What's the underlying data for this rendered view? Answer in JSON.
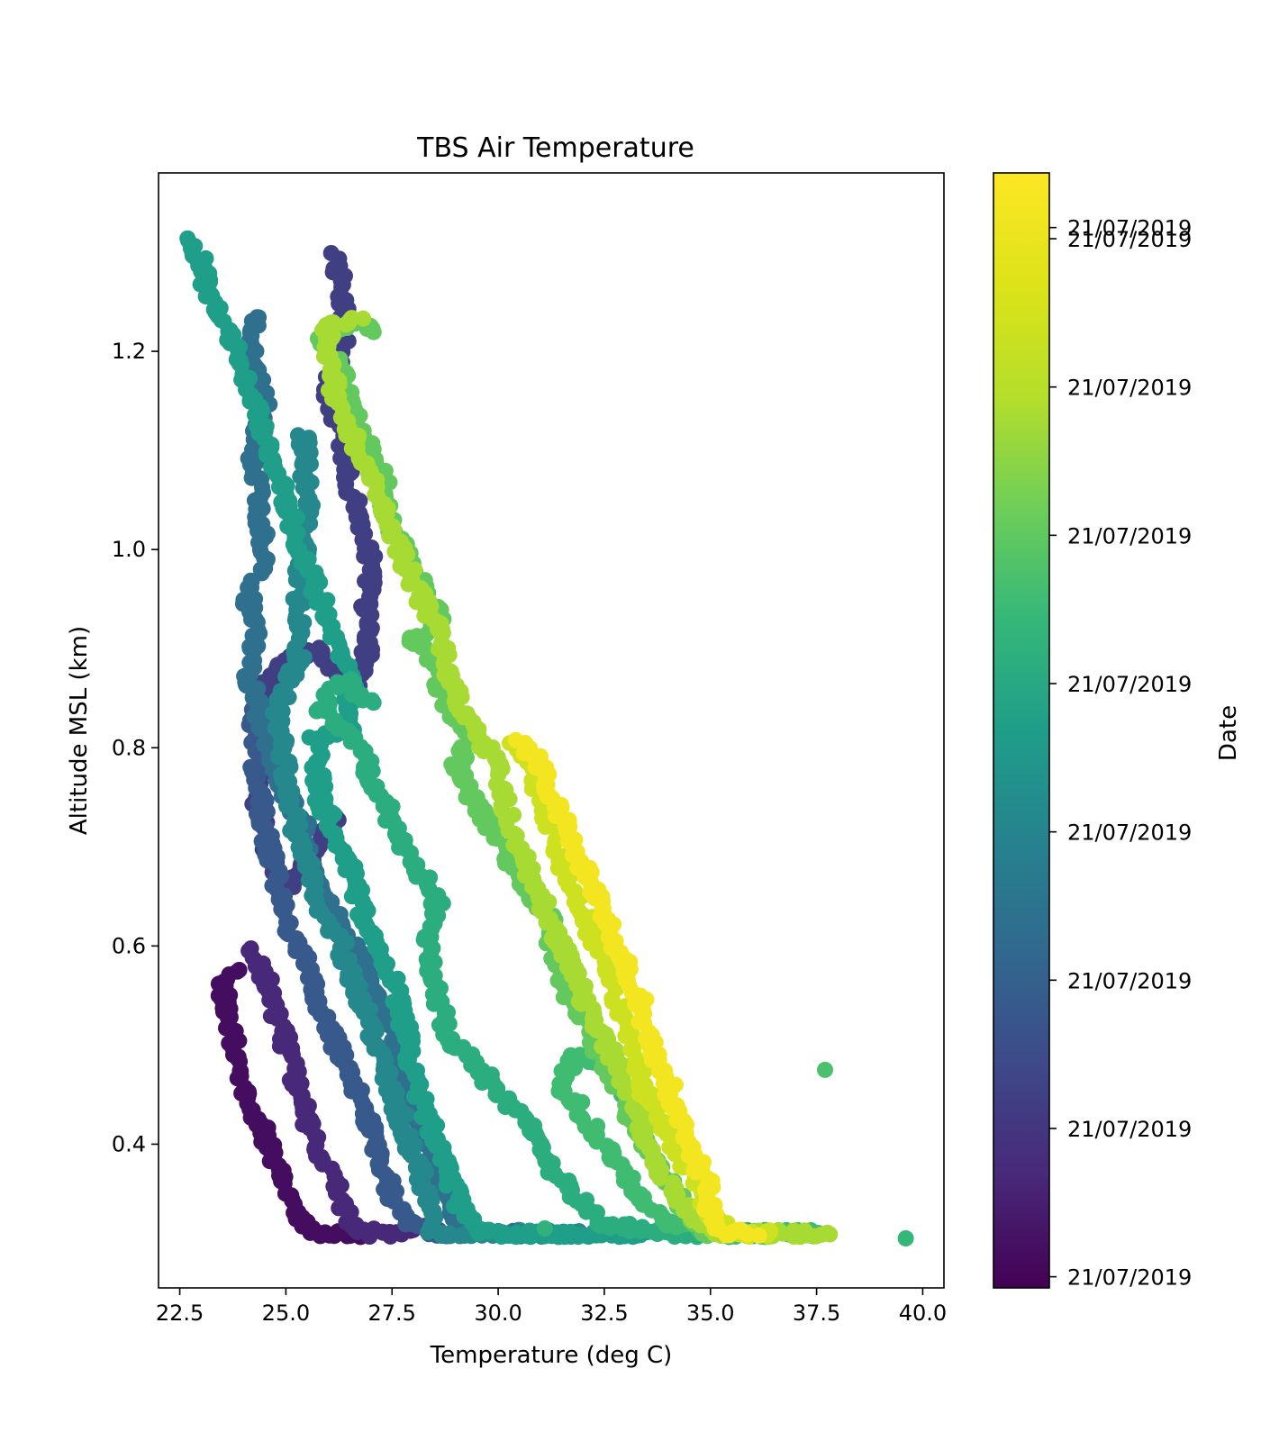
{
  "chart_data": {
    "type": "scatter",
    "title": "TBS Air Temperature",
    "xlabel": "Temperature (deg C)",
    "ylabel": "Altitude MSL (km)",
    "xlim": [
      22.0,
      40.5
    ],
    "ylim": [
      0.255,
      1.38
    ],
    "x_ticks": [
      "22.5",
      "25.0",
      "27.5",
      "30.0",
      "32.5",
      "35.0",
      "37.5",
      "40.0"
    ],
    "x_tick_values": [
      22.5,
      25.0,
      27.5,
      30.0,
      32.5,
      35.0,
      37.5,
      40.0
    ],
    "y_ticks": [
      "0.4",
      "0.6",
      "0.8",
      "1.0",
      "1.2"
    ],
    "y_tick_values": [
      0.4,
      0.6,
      0.8,
      1.0,
      1.2
    ],
    "grid": false,
    "colormap": "viridis",
    "colorbar": {
      "label": "Date",
      "tick_labels": [
        "21/07/2019",
        "21/07/2019",
        "21/07/2019",
        "21/07/2019",
        "21/07/2019",
        "21/07/2019",
        "21/07/2019",
        "21/07/2019",
        "21/07/2019"
      ],
      "tick_positions": [
        0.01,
        0.143,
        0.276,
        0.409,
        0.542,
        0.675,
        0.808,
        0.941,
        0.951
      ]
    },
    "traces": [
      {
        "c": 0.03,
        "points": [
          [
            26.8,
            0.31
          ],
          [
            25.6,
            0.31
          ],
          [
            25.2,
            0.33
          ],
          [
            24.8,
            0.38
          ],
          [
            24.4,
            0.42
          ],
          [
            23.9,
            0.47
          ],
          [
            23.7,
            0.52
          ],
          [
            23.5,
            0.56
          ],
          [
            23.9,
            0.58
          ]
        ]
      },
      {
        "c": 0.1,
        "points": [
          [
            28.0,
            0.31
          ],
          [
            27.0,
            0.31
          ],
          [
            26.5,
            0.32
          ],
          [
            26.3,
            0.35
          ],
          [
            25.8,
            0.39
          ],
          [
            25.4,
            0.44
          ],
          [
            25.0,
            0.5
          ],
          [
            24.6,
            0.56
          ],
          [
            24.2,
            0.6
          ]
        ]
      },
      {
        "c": 0.17,
        "points": [
          [
            26.2,
            0.73
          ],
          [
            25.8,
            0.7
          ],
          [
            25.0,
            0.66
          ],
          [
            24.5,
            0.7
          ],
          [
            24.3,
            0.76
          ],
          [
            24.6,
            0.8
          ],
          [
            24.3,
            0.85
          ],
          [
            24.8,
            0.88
          ],
          [
            25.6,
            0.9
          ],
          [
            26.5,
            0.86
          ],
          [
            26.9,
            0.88
          ],
          [
            26.9,
            0.94
          ],
          [
            27.0,
            1.0
          ],
          [
            26.6,
            1.05
          ],
          [
            26.4,
            1.1
          ],
          [
            26.0,
            1.16
          ],
          [
            26.4,
            1.22
          ],
          [
            26.2,
            1.3
          ]
        ]
      },
      {
        "c": 0.25,
        "points": [
          [
            29.5,
            0.31
          ],
          [
            28.5,
            0.31
          ],
          [
            27.8,
            0.32
          ],
          [
            27.4,
            0.36
          ],
          [
            27.0,
            0.42
          ],
          [
            26.5,
            0.47
          ],
          [
            26.0,
            0.52
          ],
          [
            25.5,
            0.58
          ],
          [
            25.0,
            0.62
          ],
          [
            24.8,
            0.66
          ],
          [
            24.5,
            0.72
          ],
          [
            24.3,
            0.78
          ],
          [
            24.2,
            0.84
          ]
        ]
      },
      {
        "c": 0.33,
        "points": [
          [
            30.5,
            0.31
          ],
          [
            29.5,
            0.31
          ],
          [
            29.0,
            0.33
          ],
          [
            28.6,
            0.37
          ],
          [
            28.2,
            0.42
          ],
          [
            27.8,
            0.46
          ],
          [
            27.4,
            0.52
          ],
          [
            27.0,
            0.56
          ],
          [
            26.6,
            0.6
          ],
          [
            26.0,
            0.64
          ],
          [
            25.6,
            0.68
          ],
          [
            25.4,
            0.72
          ],
          [
            24.9,
            0.76
          ],
          [
            24.5,
            0.82
          ],
          [
            24.1,
            0.87
          ],
          [
            24.3,
            0.92
          ],
          [
            24.1,
            0.95
          ],
          [
            24.5,
            0.99
          ],
          [
            24.4,
            1.04
          ],
          [
            24.2,
            1.09
          ],
          [
            24.5,
            1.15
          ],
          [
            24.2,
            1.2
          ],
          [
            24.4,
            1.24
          ]
        ]
      },
      {
        "c": 0.42,
        "points": [
          [
            32.0,
            0.31
          ],
          [
            30.5,
            0.31
          ],
          [
            29.5,
            0.31
          ],
          [
            28.5,
            0.31
          ],
          [
            28.4,
            0.34
          ],
          [
            28.0,
            0.39
          ],
          [
            27.6,
            0.44
          ],
          [
            27.3,
            0.48
          ],
          [
            27.0,
            0.52
          ],
          [
            26.6,
            0.56
          ],
          [
            26.3,
            0.6
          ],
          [
            25.8,
            0.64
          ],
          [
            25.6,
            0.68
          ],
          [
            25.2,
            0.72
          ],
          [
            25.0,
            0.78
          ],
          [
            24.8,
            0.84
          ],
          [
            25.3,
            0.89
          ],
          [
            25.3,
            0.95
          ],
          [
            25.4,
            1.0
          ],
          [
            25.5,
            1.05
          ],
          [
            25.4,
            1.12
          ]
        ]
      },
      {
        "c": 0.5,
        "points": [
          [
            33.5,
            0.31
          ],
          [
            32.0,
            0.31
          ],
          [
            31.0,
            0.31
          ],
          [
            29.5,
            0.31
          ],
          [
            29.2,
            0.33
          ],
          [
            28.8,
            0.37
          ],
          [
            28.4,
            0.42
          ],
          [
            28.0,
            0.47
          ],
          [
            27.8,
            0.52
          ],
          [
            27.5,
            0.57
          ],
          [
            27.0,
            0.61
          ],
          [
            26.7,
            0.65
          ],
          [
            26.3,
            0.7
          ],
          [
            25.8,
            0.75
          ],
          [
            25.7,
            0.81
          ],
          [
            26.5,
            0.82
          ],
          [
            26.5,
            0.87
          ],
          [
            26.1,
            0.92
          ],
          [
            25.6,
            0.97
          ],
          [
            25.2,
            1.02
          ],
          [
            24.8,
            1.08
          ],
          [
            24.3,
            1.14
          ],
          [
            23.8,
            1.2
          ],
          [
            23.2,
            1.26
          ],
          [
            22.8,
            1.32
          ]
        ]
      },
      {
        "c": 0.56,
        "points": [
          [
            36.5,
            0.31
          ],
          [
            35.0,
            0.31
          ],
          [
            34.0,
            0.31
          ],
          [
            32.5,
            0.32
          ],
          [
            31.8,
            0.35
          ],
          [
            31.2,
            0.38
          ],
          [
            30.8,
            0.42
          ],
          [
            30.0,
            0.45
          ],
          [
            29.5,
            0.48
          ],
          [
            28.8,
            0.51
          ],
          [
            28.6,
            0.55
          ],
          [
            28.3,
            0.6
          ],
          [
            28.6,
            0.65
          ],
          [
            28.0,
            0.68
          ],
          [
            27.6,
            0.71
          ],
          [
            27.4,
            0.74
          ],
          [
            27.0,
            0.77
          ],
          [
            26.6,
            0.81
          ],
          [
            25.8,
            0.84
          ],
          [
            26.4,
            0.87
          ],
          [
            27.0,
            0.84
          ]
        ]
      },
      {
        "c": 0.62,
        "points": [
          [
            37.5,
            0.31
          ],
          [
            35.5,
            0.31
          ],
          [
            34.0,
            0.32
          ],
          [
            33.5,
            0.34
          ],
          [
            33.0,
            0.37
          ],
          [
            32.5,
            0.4
          ],
          [
            32.0,
            0.43
          ],
          [
            31.5,
            0.46
          ],
          [
            31.8,
            0.49
          ],
          [
            32.5,
            0.48
          ],
          [
            33.4,
            0.43
          ]
        ]
      },
      {
        "c": 0.68,
        "points": [
          [
            36.0,
            0.31
          ],
          [
            35.0,
            0.31
          ],
          [
            34.5,
            0.33
          ],
          [
            34.0,
            0.36
          ],
          [
            33.5,
            0.4
          ],
          [
            33.0,
            0.44
          ],
          [
            32.5,
            0.48
          ],
          [
            32.1,
            0.52
          ],
          [
            31.5,
            0.56
          ],
          [
            31.3,
            0.6
          ],
          [
            31.2,
            0.63
          ],
          [
            30.5,
            0.67
          ],
          [
            30.0,
            0.71
          ],
          [
            29.5,
            0.74
          ],
          [
            29.0,
            0.78
          ],
          [
            29.4,
            0.81
          ],
          [
            28.8,
            0.84
          ],
          [
            28.5,
            0.88
          ],
          [
            28.0,
            0.91
          ],
          [
            28.6,
            0.93
          ],
          [
            28.2,
            0.96
          ],
          [
            27.8,
            1.0
          ],
          [
            27.4,
            1.03
          ],
          [
            27.3,
            1.07
          ],
          [
            26.9,
            1.11
          ],
          [
            26.5,
            1.15
          ],
          [
            26.2,
            1.19
          ],
          [
            25.8,
            1.21
          ],
          [
            26.6,
            1.23
          ],
          [
            27.2,
            1.22
          ]
        ]
      },
      {
        "c": 0.78,
        "points": [
          [
            37.8,
            0.31
          ],
          [
            36.5,
            0.31
          ],
          [
            35.0,
            0.31
          ],
          [
            34.5,
            0.33
          ],
          [
            34.0,
            0.36
          ],
          [
            33.5,
            0.4
          ],
          [
            33.2,
            0.44
          ],
          [
            32.8,
            0.48
          ],
          [
            32.3,
            0.52
          ],
          [
            31.9,
            0.56
          ],
          [
            31.6,
            0.59
          ],
          [
            31.3,
            0.62
          ],
          [
            30.9,
            0.66
          ],
          [
            30.5,
            0.7
          ],
          [
            30.2,
            0.74
          ],
          [
            30.0,
            0.78
          ],
          [
            29.6,
            0.81
          ],
          [
            29.1,
            0.84
          ],
          [
            28.8,
            0.88
          ],
          [
            28.6,
            0.92
          ],
          [
            28.2,
            0.95
          ],
          [
            27.8,
            0.99
          ],
          [
            27.4,
            1.03
          ],
          [
            27.0,
            1.07
          ],
          [
            26.6,
            1.11
          ],
          [
            26.2,
            1.15
          ],
          [
            26.0,
            1.19
          ],
          [
            26.0,
            1.23
          ],
          [
            26.8,
            1.23
          ]
        ]
      },
      {
        "c": 0.86,
        "points": [
          [
            36.5,
            0.31
          ],
          [
            35.5,
            0.31
          ],
          [
            35.0,
            0.33
          ],
          [
            34.7,
            0.36
          ],
          [
            34.3,
            0.39
          ],
          [
            33.9,
            0.42
          ],
          [
            33.5,
            0.45
          ],
          [
            33.2,
            0.49
          ],
          [
            33.0,
            0.52
          ],
          [
            32.7,
            0.56
          ],
          [
            32.3,
            0.6
          ],
          [
            32.0,
            0.64
          ],
          [
            31.6,
            0.67
          ],
          [
            31.3,
            0.71
          ],
          [
            31.0,
            0.75
          ],
          [
            30.6,
            0.79
          ],
          [
            30.3,
            0.81
          ]
        ]
      },
      {
        "c": 0.97,
        "points": [
          [
            36.0,
            0.31
          ],
          [
            35.3,
            0.31
          ],
          [
            35.0,
            0.33
          ],
          [
            34.9,
            0.36
          ],
          [
            34.6,
            0.39
          ],
          [
            34.4,
            0.42
          ],
          [
            34.1,
            0.45
          ],
          [
            33.8,
            0.48
          ],
          [
            33.5,
            0.52
          ],
          [
            33.3,
            0.55
          ],
          [
            33.0,
            0.58
          ],
          [
            32.6,
            0.62
          ],
          [
            32.3,
            0.65
          ],
          [
            31.9,
            0.69
          ],
          [
            31.6,
            0.72
          ],
          [
            31.2,
            0.76
          ],
          [
            30.9,
            0.79
          ],
          [
            30.4,
            0.81
          ]
        ]
      }
    ],
    "outliers": [
      {
        "x": 37.7,
        "y": 0.475,
        "c": 0.64
      },
      {
        "x": 39.6,
        "y": 0.305,
        "c": 0.6
      },
      {
        "x": 31.1,
        "y": 0.315,
        "c": 0.58
      }
    ]
  }
}
